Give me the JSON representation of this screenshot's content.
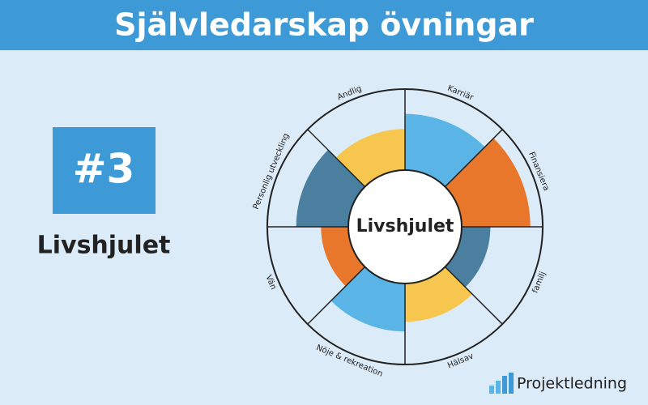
{
  "header": {
    "title": "Självledarskap övningar"
  },
  "badge": {
    "text": "#3"
  },
  "subtitle": "Livshjulet",
  "logo": {
    "text": "Projektledning"
  },
  "chart_data": {
    "type": "polar",
    "center_label": "Livshjulet",
    "categories": [
      "Karriär",
      "Finansiera",
      "familj",
      "Hälsav",
      "Nöje & rekreation",
      "Vän",
      "Personlig utveckling",
      "Andlig"
    ],
    "values": [
      8.2,
      9.1,
      6.2,
      6.9,
      7.6,
      6.1,
      7.9,
      7.1
    ],
    "colors": [
      "#5ab4e5",
      "#e8762b",
      "#4a7f9f",
      "#f6c64e",
      "#5ab4e5",
      "#e8762b",
      "#4a7f9f",
      "#f6c64e"
    ],
    "rlim": [
      0,
      10
    ]
  }
}
